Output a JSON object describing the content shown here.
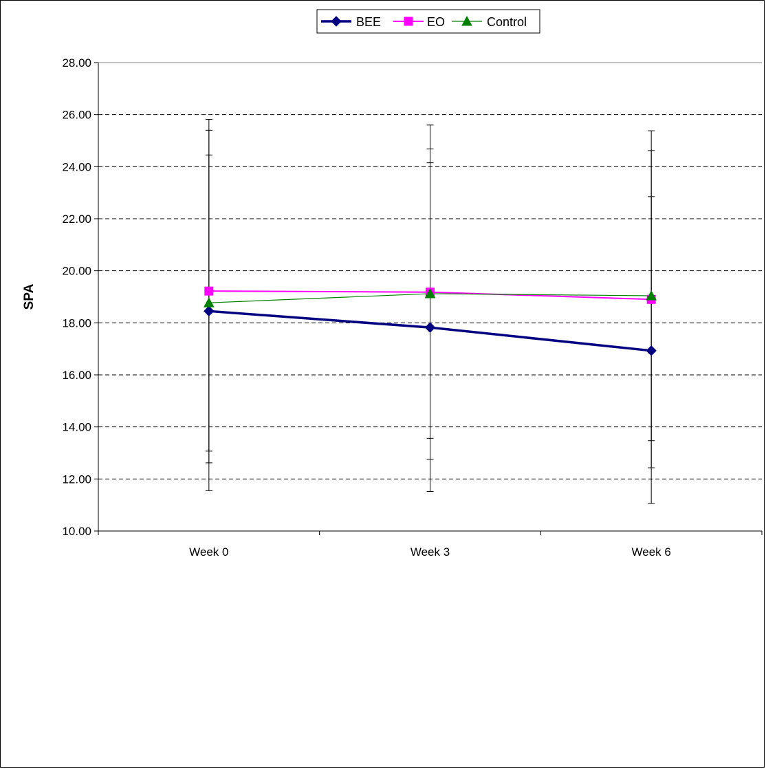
{
  "chart_data": {
    "type": "line",
    "categories": [
      "Week 0",
      "Week 3",
      "Week 6"
    ],
    "ylabel": "SPA",
    "xlabel": "",
    "ylim": [
      10,
      28
    ],
    "ytick_step": 2,
    "grid": "horizontal dashed",
    "legend_position": "top-center",
    "series": [
      {
        "name": "BEE",
        "values": [
          18.45,
          17.82,
          16.93
        ],
        "err_low": [
          11.55,
          11.52,
          11.06
        ],
        "err_high": [
          25.4,
          24.15,
          22.85
        ],
        "color": "#000080",
        "marker": "diamond"
      },
      {
        "name": "EO",
        "values": [
          19.22,
          19.18,
          18.9
        ],
        "err_low": [
          12.62,
          12.76,
          12.43
        ],
        "err_high": [
          25.82,
          25.6,
          25.38
        ],
        "color": "#FF00FF",
        "marker": "square"
      },
      {
        "name": "Control",
        "values": [
          18.77,
          19.12,
          19.04
        ],
        "err_low": [
          13.07,
          13.56,
          13.47
        ],
        "err_high": [
          24.45,
          24.68,
          24.62
        ],
        "color": "#008000",
        "marker": "triangle"
      }
    ]
  }
}
